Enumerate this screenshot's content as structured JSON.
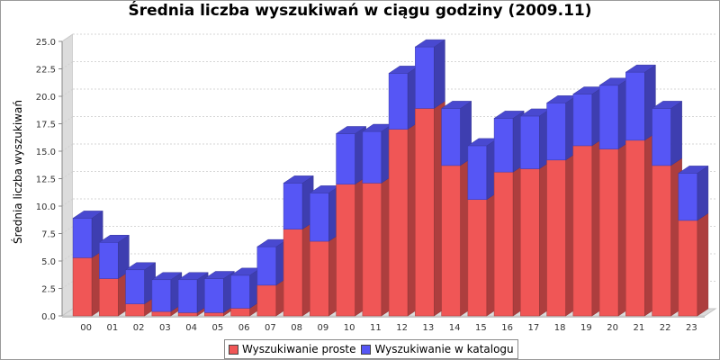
{
  "chart_data": {
    "type": "bar",
    "stacked": true,
    "style": "3d",
    "title": "Średnia liczba wyszukiwań w ciągu godziny (2009.11)",
    "xlabel": "",
    "ylabel": "Średnia liczba wyszukiwań",
    "ylim": [
      0,
      25
    ],
    "yticks": [
      "0.0",
      "2.5",
      "5.0",
      "7.5",
      "10.0",
      "12.5",
      "15.0",
      "17.5",
      "20.0",
      "22.5",
      "25.0"
    ],
    "grid": true,
    "legend_position": "bottom",
    "categories": [
      "00",
      "01",
      "02",
      "03",
      "04",
      "05",
      "06",
      "07",
      "08",
      "09",
      "10",
      "11",
      "12",
      "13",
      "14",
      "15",
      "16",
      "17",
      "18",
      "19",
      "20",
      "21",
      "22",
      "23"
    ],
    "series": [
      {
        "name": "Wyszukiwanie proste",
        "color": "#f05656",
        "values": [
          5.3,
          3.4,
          1.1,
          0.4,
          0.3,
          0.3,
          0.7,
          2.8,
          7.9,
          6.8,
          12.0,
          12.1,
          17.0,
          18.9,
          13.7,
          10.6,
          13.1,
          13.4,
          14.2,
          15.5,
          15.2,
          16.0,
          13.7,
          8.7
        ]
      },
      {
        "name": "Wyszukiwanie w katalogu",
        "color": "#5656f5",
        "values": [
          3.6,
          3.3,
          3.1,
          2.9,
          3.0,
          3.1,
          3.0,
          3.5,
          4.2,
          4.4,
          4.6,
          4.7,
          5.1,
          5.6,
          5.2,
          4.9,
          4.9,
          4.8,
          5.2,
          4.7,
          5.8,
          6.2,
          5.2,
          4.3
        ]
      }
    ]
  }
}
